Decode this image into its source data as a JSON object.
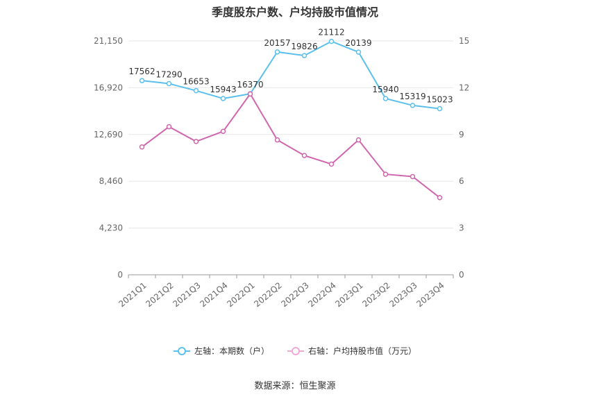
{
  "title": "季度股东户数、户均持股市值情况",
  "source": "数据来源：恒生聚源",
  "chart_data": {
    "type": "line",
    "categories": [
      "2021Q1",
      "2021Q2",
      "2021Q3",
      "2021Q4",
      "2022Q1",
      "2022Q2",
      "2022Q3",
      "2022Q4",
      "2023Q1",
      "2023Q2",
      "2023Q3",
      "2023Q4"
    ],
    "left_axis": {
      "min": 0,
      "max": 21150,
      "ticks": [
        "0",
        "4,230",
        "8,460",
        "12,690",
        "16,920",
        "21,150"
      ]
    },
    "right_axis": {
      "min": 0,
      "max": 15,
      "ticks": [
        "0",
        "3",
        "6",
        "9",
        "12",
        "15"
      ]
    },
    "series": [
      {
        "name": "左轴：本期数（户）",
        "axis": "left",
        "color": "#5bc0eb",
        "values": [
          17562,
          17290,
          16653,
          15943,
          16370,
          20157,
          19826,
          21112,
          20139,
          15940,
          15319,
          15023
        ],
        "labels": [
          "17562",
          "17290",
          "16653",
          "15943",
          "16370",
          "20157",
          "19826",
          "21112",
          "20139",
          "15940",
          "15319",
          "15023"
        ]
      },
      {
        "name": "右轴：户均持股市值（万元）",
        "axis": "right",
        "color": "#d066ad",
        "values": [
          8.2,
          9.5,
          8.55,
          9.2,
          11.6,
          8.65,
          7.65,
          7.1,
          8.65,
          6.45,
          6.3,
          4.95
        ]
      }
    ],
    "grid": true,
    "legend_position": "bottom"
  }
}
